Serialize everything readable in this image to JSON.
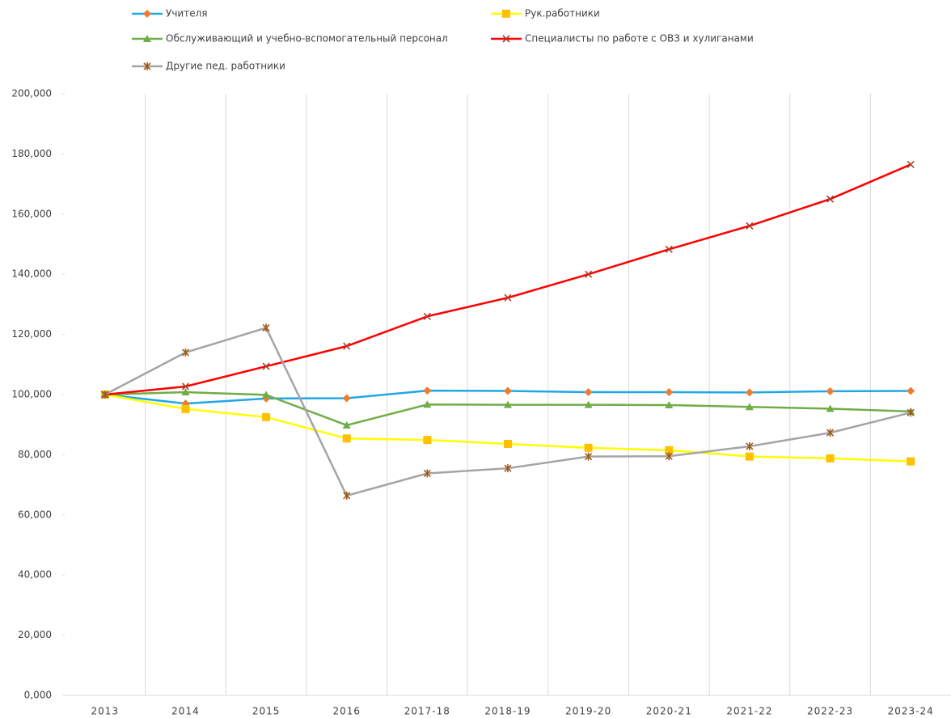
{
  "chart_data": {
    "type": "line",
    "categories": [
      "2013",
      "2014",
      "2015",
      "2016",
      "2017-18",
      "2018-19",
      "2019-20",
      "2020-21",
      "2021-22",
      "2022-23",
      "2023-24"
    ],
    "series": [
      {
        "name": "Учителя",
        "color": "#1fa7e6",
        "marker": "diamond",
        "marker_color": "#ed7d31",
        "values": [
          100,
          97.0,
          98.7,
          98.8,
          101.3,
          101.2,
          100.8,
          100.8,
          100.7,
          101.1,
          101.2
        ]
      },
      {
        "name": "Рук.работники",
        "color": "#ffff00",
        "marker": "square",
        "marker_color": "#ffc000",
        "values": [
          100,
          95.2,
          92.5,
          85.4,
          84.9,
          83.6,
          82.3,
          81.5,
          79.4,
          78.8,
          77.8
        ]
      },
      {
        "name": "Обслуживающий и учебно-вспомогательный персонал",
        "color": "#70ad47",
        "marker": "triangle",
        "marker_color": "#70ad47",
        "values": [
          100,
          100.8,
          99.9,
          89.8,
          96.7,
          96.6,
          96.6,
          96.5,
          95.9,
          95.3,
          94.4
        ]
      },
      {
        "name": "Специалисты по работе с ОВЗ и хулиганами",
        "color": "#ff0000",
        "marker": "x",
        "marker_color": "#a5402a",
        "values": [
          100,
          102.7,
          109.4,
          116.1,
          126.0,
          132.2,
          140.0,
          148.3,
          156.1,
          165.0,
          176.5
        ]
      },
      {
        "name": "Другие пед. работники",
        "color": "#a5a5a5",
        "marker": "star",
        "marker_color": "#9c5a1a",
        "values": [
          100,
          114.0,
          122.2,
          66.4,
          73.8,
          75.5,
          79.4,
          79.5,
          82.8,
          87.3,
          94.0
        ]
      }
    ],
    "ylim": [
      0,
      200
    ],
    "yticks": [
      {
        "value": 0,
        "label": "0,000"
      },
      {
        "value": 20,
        "label": "20,000"
      },
      {
        "value": 40,
        "label": "40,000"
      },
      {
        "value": 60,
        "label": "60,000"
      },
      {
        "value": 80,
        "label": "80,000"
      },
      {
        "value": 100,
        "label": "100,000"
      },
      {
        "value": 120,
        "label": "120,000"
      },
      {
        "value": 140,
        "label": "140,000"
      },
      {
        "value": 160,
        "label": "160,000"
      },
      {
        "value": 180,
        "label": "180,000"
      },
      {
        "value": 200,
        "label": "200,000"
      }
    ],
    "grid": "x",
    "legend": "top"
  }
}
